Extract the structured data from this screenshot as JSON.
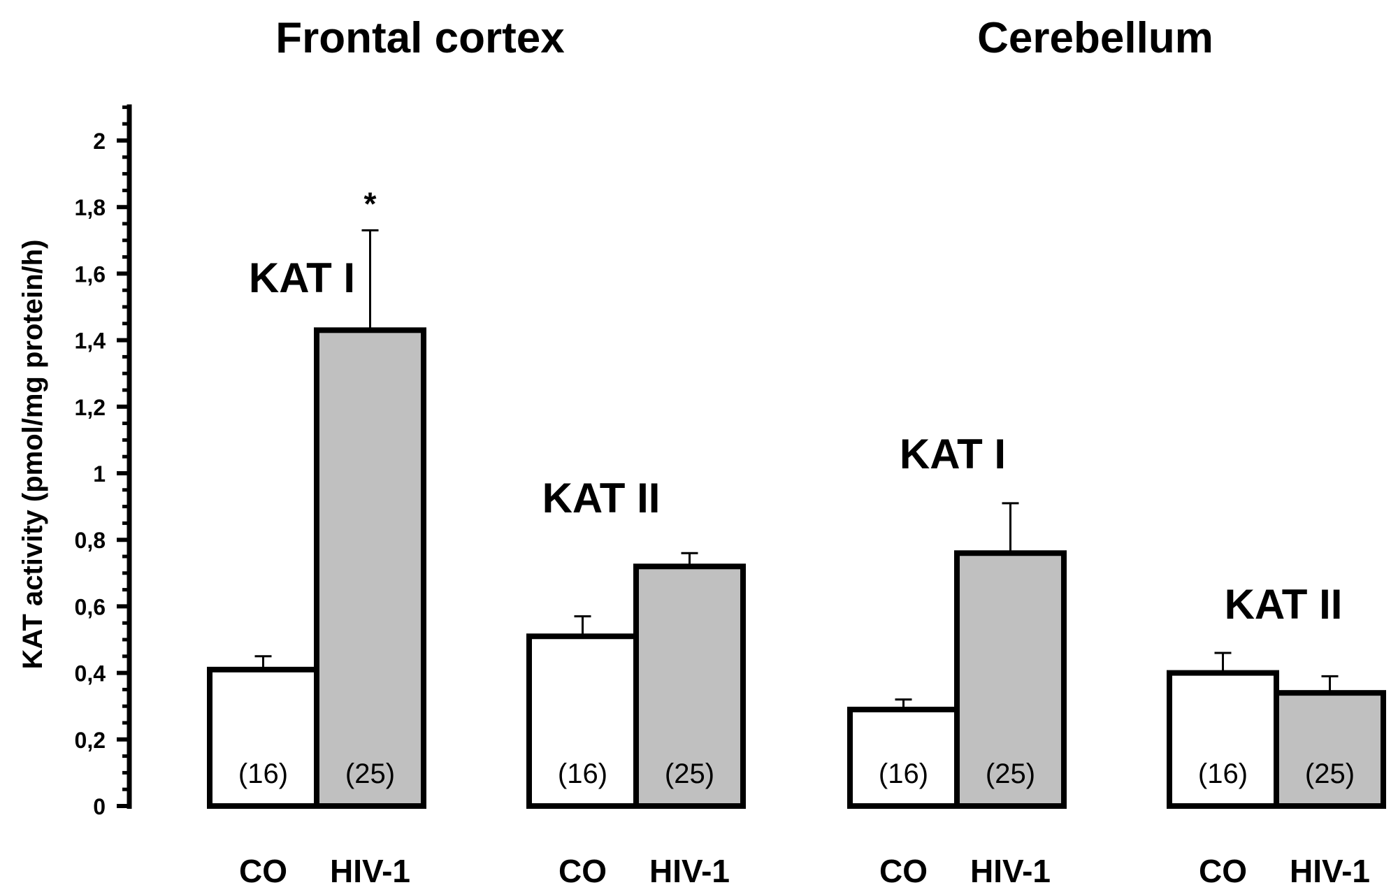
{
  "chart_data": {
    "type": "bar",
    "ylabel": "KAT activity (pmol/mg protein/h)",
    "ylim": [
      0,
      2.1
    ],
    "yticks": [
      {
        "value": 0,
        "label": "0"
      },
      {
        "value": 0.2,
        "label": "0,2"
      },
      {
        "value": 0.4,
        "label": "0,4"
      },
      {
        "value": 0.6,
        "label": "0,6"
      },
      {
        "value": 0.8,
        "label": "0,8"
      },
      {
        "value": 1,
        "label": "1"
      },
      {
        "value": 1.2,
        "label": "1,2"
      },
      {
        "value": 1.4,
        "label": "1,4"
      },
      {
        "value": 1.6,
        "label": "1,6"
      },
      {
        "value": 1.8,
        "label": "1,8"
      },
      {
        "value": 2,
        "label": "2"
      }
    ],
    "regions": [
      "Frontal cortex",
      "Cerebellum"
    ],
    "groups": [
      {
        "region": "Frontal cortex",
        "label": "KAT I",
        "bars": [
          {
            "category": "CO",
            "value": 0.41,
            "error": 0.04,
            "n_label": "(16)",
            "color": "#ffffff"
          },
          {
            "category": "HIV-1",
            "value": 1.43,
            "error": 0.3,
            "n_label": "(25)",
            "color": "#c0c0c0",
            "significance": "*"
          }
        ]
      },
      {
        "region": "Frontal cortex",
        "label": "KAT II",
        "bars": [
          {
            "category": "CO",
            "value": 0.51,
            "error": 0.06,
            "n_label": "(16)",
            "color": "#ffffff"
          },
          {
            "category": "HIV-1",
            "value": 0.72,
            "error": 0.04,
            "n_label": "(25)",
            "color": "#c0c0c0"
          }
        ]
      },
      {
        "region": "Cerebellum",
        "label": "KAT I",
        "bars": [
          {
            "category": "CO",
            "value": 0.29,
            "error": 0.03,
            "n_label": "(16)",
            "color": "#ffffff"
          },
          {
            "category": "HIV-1",
            "value": 0.76,
            "error": 0.15,
            "n_label": "(25)",
            "color": "#c0c0c0"
          }
        ]
      },
      {
        "region": "Cerebellum",
        "label": "KAT II",
        "bars": [
          {
            "category": "CO",
            "value": 0.4,
            "error": 0.06,
            "n_label": "(16)",
            "color": "#ffffff"
          },
          {
            "category": "HIV-1",
            "value": 0.34,
            "error": 0.05,
            "n_label": "(25)",
            "color": "#c0c0c0"
          }
        ]
      }
    ]
  }
}
